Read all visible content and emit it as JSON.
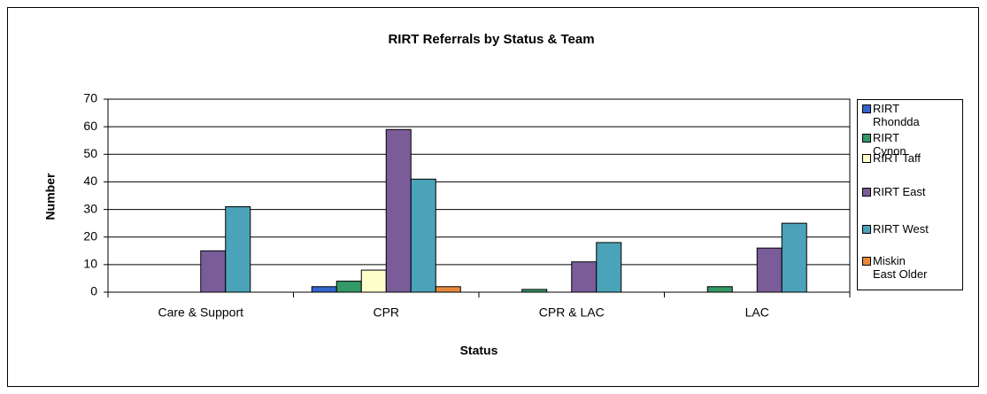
{
  "chart_data": {
    "type": "bar",
    "title": "RIRT Referrals by Status & Team",
    "x_label": "Status",
    "y_label": "Number",
    "categories": [
      "Care & Support",
      "CPR",
      "CPR & LAC",
      "LAC"
    ],
    "series": [
      {
        "name": "RIRT Rhondda",
        "color": "#3366cc",
        "values": [
          0,
          2,
          0,
          0
        ]
      },
      {
        "name": "RIRT Cynon",
        "color": "#339966",
        "values": [
          0,
          4,
          1,
          2
        ]
      },
      {
        "name": "RIRT Taff",
        "color": "#ffffcc",
        "values": [
          0,
          8,
          0,
          0
        ]
      },
      {
        "name": "RIRT East",
        "color": "#7a5c99",
        "values": [
          15,
          59,
          11,
          16
        ]
      },
      {
        "name": "RIRT West",
        "color": "#4aa3b8",
        "values": [
          31,
          41,
          18,
          25
        ]
      },
      {
        "name": "Miskin East Older",
        "color": "#e8883a",
        "values": [
          0,
          2,
          0,
          0
        ]
      }
    ],
    "ylim": [
      0,
      70
    ],
    "yticks": [
      0,
      10,
      20,
      30,
      40,
      50,
      60,
      70
    ],
    "grid": true,
    "legend": "right"
  }
}
